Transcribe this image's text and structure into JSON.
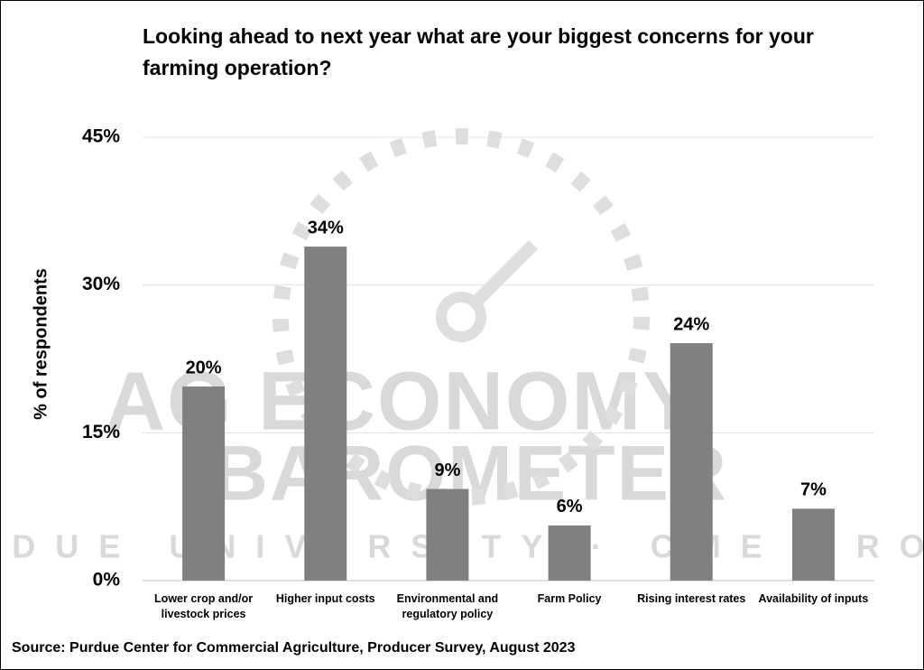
{
  "chart_data": {
    "type": "bar",
    "title": "Looking ahead to next year what are your biggest concerns for your farming operation?",
    "y_label": "% of respondents",
    "source": "Source: Purdue Center for Commercial Agriculture, Producer Survey, August 2023",
    "watermark": [
      "AG ECONOMY",
      "BAROMETER",
      "PURDUE UNIVERSITY · CME GROUP"
    ],
    "categories": [
      "Lower crop and/or livestock prices",
      "Higher input costs",
      "Environmental and regulatory policy",
      "Farm Policy",
      "Rising interest rates",
      "Availability of inputs"
    ],
    "values": [
      19.7,
      33.9,
      9.3,
      5.6,
      24.1,
      7.3
    ],
    "value_labels": [
      "20%",
      "34%",
      "9%",
      "6%",
      "24%",
      "7%"
    ],
    "color": "#808080",
    "ylim": [
      0,
      45
    ],
    "yticks": [
      {
        "value": 0,
        "label": "0%"
      },
      {
        "value": 15,
        "label": "15%"
      },
      {
        "value": 30,
        "label": "30%"
      },
      {
        "value": 45,
        "label": "45%"
      }
    ],
    "grid": true
  }
}
